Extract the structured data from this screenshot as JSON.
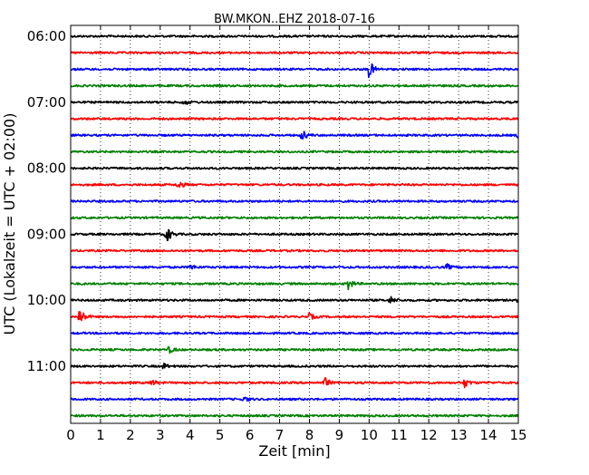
{
  "chart_data": {
    "type": "line",
    "title": "BW.MKON..EHZ 2018-07-16",
    "xlabel": "Zeit  [min]",
    "ylabel": "UTC (Lokalzeit = UTC + 02:00)",
    "xlim": [
      0,
      15
    ],
    "x_ticks": [
      0,
      1,
      2,
      3,
      4,
      5,
      6,
      7,
      8,
      9,
      10,
      11,
      12,
      13,
      14,
      15
    ],
    "y_tick_labels": [
      "06:00",
      "07:00",
      "08:00",
      "09:00",
      "10:00",
      "11:00"
    ],
    "grid": "vertical dotted",
    "trace_minutes_per_row": 15,
    "start_time": "06:00",
    "colors_cycle": [
      "#000000",
      "#ff0000",
      "#0000ff",
      "#008000"
    ],
    "series": [
      {
        "start": "06:00",
        "color": "#000000",
        "events": []
      },
      {
        "start": "06:15",
        "color": "#ff0000",
        "events": []
      },
      {
        "start": "06:30",
        "color": "#0000ff",
        "events": [
          {
            "t": 10.0,
            "amp": 1.0
          }
        ]
      },
      {
        "start": "06:45",
        "color": "#008000",
        "events": []
      },
      {
        "start": "07:00",
        "color": "#000000",
        "events": [
          {
            "t": 3.8,
            "amp": 0.3
          }
        ]
      },
      {
        "start": "07:15",
        "color": "#ff0000",
        "events": []
      },
      {
        "start": "07:30",
        "color": "#0000ff",
        "events": [
          {
            "t": 7.75,
            "amp": 0.6
          },
          {
            "t": 15.0,
            "amp": 0.4
          }
        ]
      },
      {
        "start": "07:45",
        "color": "#008000",
        "events": []
      },
      {
        "start": "08:00",
        "color": "#000000",
        "events": []
      },
      {
        "start": "08:15",
        "color": "#ff0000",
        "events": [
          {
            "t": 3.6,
            "amp": 0.5
          }
        ]
      },
      {
        "start": "08:30",
        "color": "#0000ff",
        "events": []
      },
      {
        "start": "08:45",
        "color": "#008000",
        "events": []
      },
      {
        "start": "09:00",
        "color": "#000000",
        "events": [
          {
            "t": 3.2,
            "amp": 1.0
          }
        ]
      },
      {
        "start": "09:15",
        "color": "#ff0000",
        "events": []
      },
      {
        "start": "09:30",
        "color": "#0000ff",
        "events": [
          {
            "t": 4.0,
            "amp": 0.3
          },
          {
            "t": 12.6,
            "amp": 0.3
          }
        ]
      },
      {
        "start": "09:45",
        "color": "#008000",
        "events": [
          {
            "t": 9.3,
            "amp": 0.6
          }
        ]
      },
      {
        "start": "10:00",
        "color": "#000000",
        "events": [
          {
            "t": 10.7,
            "amp": 0.4
          },
          {
            "t": 15.0,
            "amp": 0.4
          }
        ]
      },
      {
        "start": "10:15",
        "color": "#ff0000",
        "events": [
          {
            "t": 0.3,
            "amp": 1.0
          },
          {
            "t": 8.0,
            "amp": 0.35
          }
        ]
      },
      {
        "start": "10:30",
        "color": "#0000ff",
        "events": []
      },
      {
        "start": "10:45",
        "color": "#008000",
        "events": [
          {
            "t": 3.3,
            "amp": 0.35
          }
        ]
      },
      {
        "start": "11:00",
        "color": "#000000",
        "events": [
          {
            "t": 3.1,
            "amp": 0.3
          }
        ]
      },
      {
        "start": "11:15",
        "color": "#ff0000",
        "events": [
          {
            "t": 2.7,
            "amp": 0.35
          },
          {
            "t": 8.5,
            "amp": 0.6
          },
          {
            "t": 13.2,
            "amp": 0.45
          }
        ]
      },
      {
        "start": "11:30",
        "color": "#0000ff",
        "events": [
          {
            "t": 5.8,
            "amp": 0.3
          }
        ]
      },
      {
        "start": "11:45",
        "color": "#008000",
        "events": []
      }
    ]
  }
}
